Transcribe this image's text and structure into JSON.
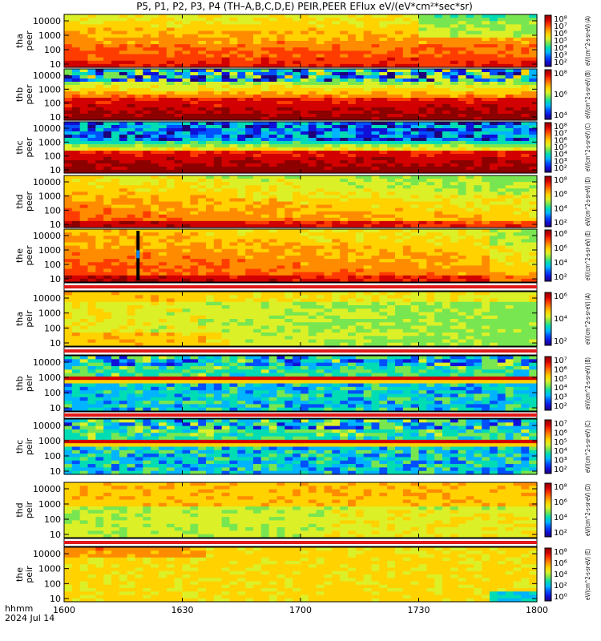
{
  "title": "P5, P1, P2, P3, P4 (TH–A,B,C,D,E) PEIR,PEER EFlux eV/(eV*cm²*sec*sr)",
  "footer": {
    "hhmm": "hhmm",
    "date": "2024 Jul 14"
  },
  "colors": {
    "spectrum": [
      "#1e0078",
      "#1010d8",
      "#0050ff",
      "#00b4ff",
      "#00dcb4",
      "#78e650",
      "#dcf028",
      "#ffd200",
      "#ff8c00",
      "#ff3c00",
      "#d20000",
      "#8c0000"
    ],
    "frame": "#000000",
    "gap_band": "#e01818"
  },
  "chart_data": {
    "type": "heatmap",
    "x_ticks": [
      "1600",
      "1630",
      "1700",
      "1730",
      "1800"
    ],
    "x_range": [
      0,
      120
    ],
    "y_scale": "log",
    "y_ticks": [
      "10",
      "100",
      "1000",
      "10000"
    ],
    "panels": [
      {
        "id": "tha-peer",
        "label": [
          "tha",
          "peer"
        ],
        "colorbar_ticks": [
          "10²",
          "10³",
          "10⁴",
          "10⁵",
          "10⁶",
          "10⁷",
          "10⁸"
        ],
        "colorbar_label": "eV/(cm^2-s-sr-eV) (A)",
        "pattern": "hot-low"
      },
      {
        "id": "thb-peer",
        "label": [
          "thb",
          "peer"
        ],
        "colorbar_ticks": [
          "10⁴",
          "10⁶",
          "10⁸"
        ],
        "colorbar_label": "eV/(cm^2-s-sr-eV) (B)",
        "pattern": "noisy-top"
      },
      {
        "id": "thc-peer",
        "label": [
          "thc",
          "peer"
        ],
        "colorbar_ticks": [
          "10²",
          "10³",
          "10⁴",
          "10⁵",
          "10⁶",
          "10⁷",
          "10⁸"
        ],
        "colorbar_label": "eV/(cm^2-s-sr-eV) (C)",
        "pattern": "noisy-top-strong"
      },
      {
        "id": "thd-peer",
        "label": [
          "thd",
          "peer"
        ],
        "colorbar_ticks": [
          "10²",
          "10⁴",
          "10⁶",
          "10⁸"
        ],
        "colorbar_label": "eV/(cm^2-s-sr-eV) (D)",
        "pattern": "hot-wide"
      },
      {
        "id": "the-peer",
        "label": [
          "the",
          "peer"
        ],
        "colorbar_ticks": [
          "10²",
          "10⁴",
          "10⁶",
          "10⁸"
        ],
        "colorbar_label": "eV/(cm^2-s-sr-eV) (E)",
        "pattern": "hot-wide-spike"
      },
      {
        "id": "tha-peir",
        "label": [
          "tha",
          "peir"
        ],
        "colorbar_ticks": [
          "10²",
          "10⁴",
          "10⁶"
        ],
        "colorbar_label": "eV/(cm^2-s-sr-eV) (A)",
        "pattern": "green"
      },
      {
        "id": "thb-peir",
        "label": [
          "thb",
          "peir"
        ],
        "colorbar_ticks": [
          "10²",
          "10³",
          "10⁴",
          "10⁵",
          "10⁶",
          "10⁷"
        ],
        "colorbar_label": "eV/(cm^2-s-sr-eV) (B)",
        "pattern": "banded"
      },
      {
        "id": "thc-peir",
        "label": [
          "thc",
          "peir"
        ],
        "colorbar_ticks": [
          "10²",
          "10³",
          "10⁴",
          "10⁵",
          "10⁶",
          "10⁷"
        ],
        "colorbar_label": "eV/(cm^2-s-sr-eV) (C)",
        "pattern": "banded"
      },
      {
        "id": "thd-peir",
        "label": [
          "thd",
          "peir"
        ],
        "colorbar_ticks": [
          "10²",
          "10⁴",
          "10⁶",
          "10⁸"
        ],
        "colorbar_label": "eV/(cm^2-s-sr-eV) (D)",
        "pattern": "green-yellow"
      },
      {
        "id": "the-peir",
        "label": [
          "the",
          "peir"
        ],
        "colorbar_ticks": [
          "10⁰",
          "10²",
          "10⁴",
          "10⁶",
          "10⁸"
        ],
        "colorbar_label": "eV/(cm^2-s-sr-eV) (E)",
        "pattern": "yellow-green"
      }
    ]
  }
}
